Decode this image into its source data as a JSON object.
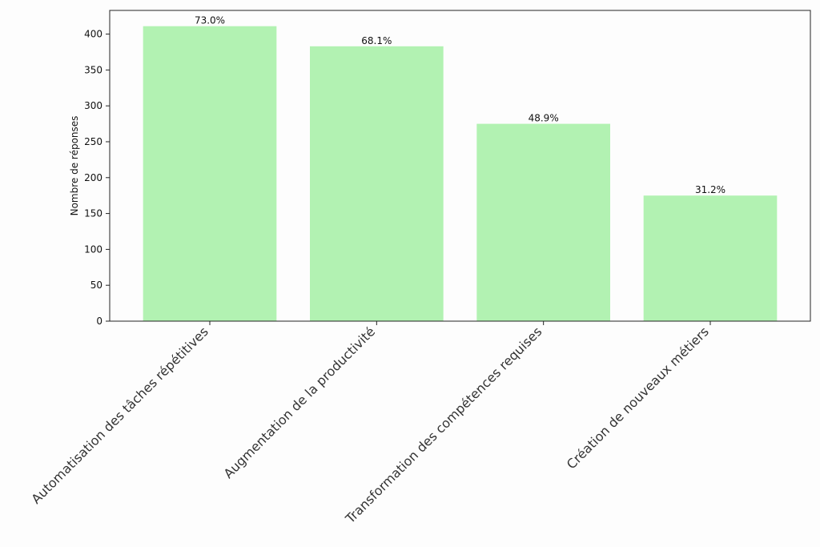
{
  "chart_data": {
    "type": "bar",
    "ylabel": "Nombre de réponses",
    "xlabel": "",
    "ylim": [
      0,
      433
    ],
    "yticks": [
      0,
      50,
      100,
      150,
      200,
      250,
      300,
      350,
      400
    ],
    "categories": [
      "Automatisation des tâches répétitives",
      "Augmentation de la productivité",
      "Transformation des compétences requises",
      "Création de nouveaux métiers"
    ],
    "values": [
      411,
      383,
      275,
      175
    ],
    "data_labels": [
      "73.0%",
      "68.1%",
      "48.9%",
      "31.2%"
    ],
    "bar_color": "#b2f2b2",
    "grid": false
  }
}
